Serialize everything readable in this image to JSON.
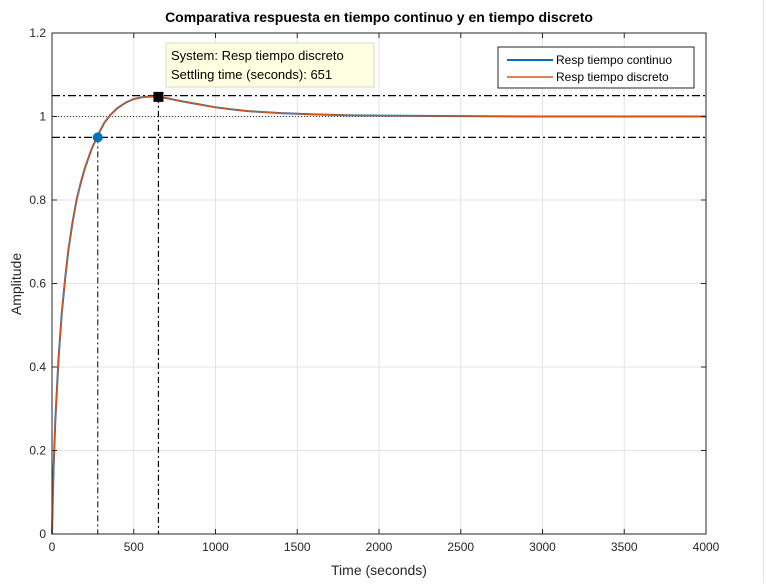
{
  "chart_data": {
    "type": "line",
    "title": "Comparativa respuesta en tiempo continuo y en tiempo discreto",
    "xlabel": "Time (seconds)",
    "ylabel": "Amplitude",
    "xlim": [
      0,
      4000
    ],
    "ylim": [
      0,
      1.2
    ],
    "x_ticks": [
      0,
      500,
      1000,
      1500,
      2000,
      2500,
      3000,
      3500,
      4000
    ],
    "x_tick_labels": [
      "0",
      "500",
      "1000",
      "1500",
      "2000",
      "2500",
      "3000",
      "3500",
      "4000"
    ],
    "y_ticks": [
      0,
      0.2,
      0.4,
      0.6,
      0.8,
      1.0,
      1.2
    ],
    "y_tick_labels": [
      "0",
      "0.2",
      "0.4",
      "0.6",
      "0.8",
      "1",
      "1.2"
    ],
    "grid": true,
    "legend_position": "top-right",
    "series": [
      {
        "name": "Resp tiempo continuo",
        "color": "#0072BD",
        "x": [
          0,
          5,
          10,
          20,
          40,
          60,
          80,
          100,
          125,
          150,
          175,
          200,
          240,
          280,
          320,
          360,
          400,
          450,
          500,
          550,
          600,
          651,
          700,
          750,
          800,
          900,
          1000,
          1100,
          1200,
          1400,
          1600,
          1800,
          2000,
          2500,
          3000,
          3500,
          4000
        ],
        "y": [
          0,
          0.09,
          0.16,
          0.27,
          0.42,
          0.53,
          0.61,
          0.68,
          0.745,
          0.8,
          0.84,
          0.875,
          0.92,
          0.955,
          0.985,
          1.005,
          1.02,
          1.033,
          1.042,
          1.046,
          1.048,
          1.047,
          1.044,
          1.04,
          1.036,
          1.029,
          1.022,
          1.017,
          1.013,
          1.008,
          1.005,
          1.003,
          1.002,
          1.001,
          1.0,
          1.0,
          1.0
        ]
      },
      {
        "name": "Resp tiempo discreto",
        "color": "#D95319",
        "x": [
          0,
          5,
          10,
          20,
          40,
          60,
          80,
          100,
          125,
          150,
          175,
          200,
          240,
          280,
          320,
          360,
          400,
          450,
          500,
          550,
          600,
          651,
          700,
          750,
          800,
          900,
          1000,
          1100,
          1200,
          1400,
          1600,
          1800,
          2000,
          2500,
          3000,
          3500,
          4000
        ],
        "y": [
          0,
          0.09,
          0.16,
          0.27,
          0.42,
          0.53,
          0.61,
          0.68,
          0.745,
          0.8,
          0.84,
          0.875,
          0.92,
          0.955,
          0.985,
          1.005,
          1.02,
          1.033,
          1.042,
          1.046,
          1.048,
          1.047,
          1.044,
          1.04,
          1.036,
          1.029,
          1.022,
          1.017,
          1.013,
          1.008,
          1.005,
          1.003,
          1.002,
          1.001,
          1.0,
          1.0,
          1.0
        ]
      }
    ],
    "reference_lines": {
      "settling_bounds": [
        0.95,
        1.05
      ],
      "final_value": 1.0,
      "rise_marker": {
        "x": 280,
        "y": 0.95
      },
      "settling_marker": {
        "x": 651,
        "y": 1.047
      }
    },
    "annotation": {
      "system_line": "System: Resp tiempo discreto",
      "settling_line": "Settling time (seconds): 651"
    }
  }
}
